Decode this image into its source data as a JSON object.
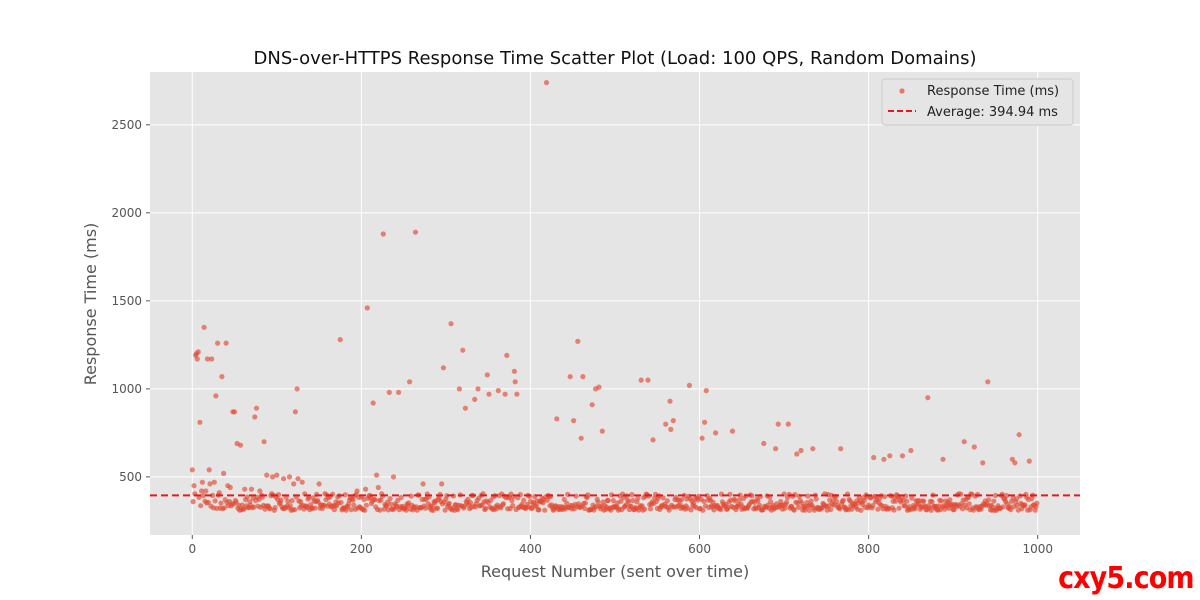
{
  "chart_data": {
    "type": "scatter",
    "title": "DNS-over-HTTPS Response Time Scatter Plot (Load: 100 QPS, Random Domains)",
    "xlabel": "Request Number (sent over time)",
    "ylabel": "Response Time (ms)",
    "xlim": [
      -50,
      1050
    ],
    "ylim": [
      170,
      2800
    ],
    "xticks": [
      0,
      200,
      400,
      600,
      800,
      1000
    ],
    "yticks": [
      500,
      1000,
      1500,
      2000,
      2500
    ],
    "grid": true,
    "background": "#e5e5e5",
    "legend_position": "top-right",
    "series": [
      {
        "name": "Response Time (ms)",
        "color": "#e24a33",
        "n": 1000,
        "baseline_band": [
          300,
          400
        ],
        "outliers": [
          [
            0,
            540
          ],
          [
            2,
            450
          ],
          [
            4,
            1190
          ],
          [
            5,
            1200
          ],
          [
            6,
            1170
          ],
          [
            7,
            1210
          ],
          [
            9,
            810
          ],
          [
            11,
            420
          ],
          [
            12,
            470
          ],
          [
            14,
            1350
          ],
          [
            16,
            420
          ],
          [
            18,
            1170
          ],
          [
            20,
            540
          ],
          [
            21,
            460
          ],
          [
            23,
            1170
          ],
          [
            26,
            470
          ],
          [
            28,
            960
          ],
          [
            30,
            1260
          ],
          [
            32,
            410
          ],
          [
            35,
            1070
          ],
          [
            37,
            520
          ],
          [
            40,
            1260
          ],
          [
            42,
            450
          ],
          [
            45,
            440
          ],
          [
            48,
            870
          ],
          [
            50,
            870
          ],
          [
            53,
            690
          ],
          [
            57,
            680
          ],
          [
            62,
            430
          ],
          [
            70,
            430
          ],
          [
            74,
            840
          ],
          [
            76,
            890
          ],
          [
            80,
            420
          ],
          [
            85,
            700
          ],
          [
            88,
            510
          ],
          [
            95,
            500
          ],
          [
            100,
            510
          ],
          [
            108,
            490
          ],
          [
            115,
            500
          ],
          [
            120,
            460
          ],
          [
            122,
            870
          ],
          [
            124,
            1000
          ],
          [
            125,
            490
          ],
          [
            130,
            470
          ],
          [
            150,
            460
          ],
          [
            175,
            1280
          ],
          [
            195,
            420
          ],
          [
            205,
            430
          ],
          [
            207,
            1460
          ],
          [
            214,
            920
          ],
          [
            218,
            510
          ],
          [
            220,
            440
          ],
          [
            226,
            1880
          ],
          [
            233,
            980
          ],
          [
            238,
            500
          ],
          [
            244,
            980
          ],
          [
            257,
            1040
          ],
          [
            264,
            1890
          ],
          [
            273,
            460
          ],
          [
            295,
            460
          ],
          [
            297,
            1120
          ],
          [
            306,
            1370
          ],
          [
            316,
            1000
          ],
          [
            320,
            1220
          ],
          [
            323,
            890
          ],
          [
            334,
            940
          ],
          [
            338,
            1000
          ],
          [
            349,
            1080
          ],
          [
            351,
            970
          ],
          [
            362,
            990
          ],
          [
            370,
            970
          ],
          [
            372,
            1190
          ],
          [
            381,
            1100
          ],
          [
            382,
            1040
          ],
          [
            384,
            970
          ],
          [
            419,
            2740
          ],
          [
            431,
            830
          ],
          [
            447,
            1070
          ],
          [
            451,
            820
          ],
          [
            456,
            1270
          ],
          [
            460,
            720
          ],
          [
            462,
            1070
          ],
          [
            473,
            910
          ],
          [
            477,
            1000
          ],
          [
            481,
            1010
          ],
          [
            485,
            760
          ],
          [
            531,
            1050
          ],
          [
            539,
            1050
          ],
          [
            545,
            710
          ],
          [
            560,
            800
          ],
          [
            565,
            930
          ],
          [
            566,
            770
          ],
          [
            569,
            820
          ],
          [
            588,
            1020
          ],
          [
            603,
            720
          ],
          [
            606,
            810
          ],
          [
            608,
            990
          ],
          [
            619,
            750
          ],
          [
            639,
            760
          ],
          [
            676,
            690
          ],
          [
            690,
            660
          ],
          [
            693,
            800
          ],
          [
            705,
            800
          ],
          [
            715,
            630
          ],
          [
            720,
            650
          ],
          [
            734,
            660
          ],
          [
            767,
            660
          ],
          [
            806,
            610
          ],
          [
            818,
            600
          ],
          [
            825,
            620
          ],
          [
            840,
            620
          ],
          [
            850,
            650
          ],
          [
            870,
            950
          ],
          [
            888,
            600
          ],
          [
            913,
            700
          ],
          [
            925,
            670
          ],
          [
            935,
            580
          ],
          [
            941,
            1040
          ],
          [
            970,
            600
          ],
          [
            973,
            580
          ],
          [
            978,
            740
          ],
          [
            990,
            590
          ]
        ]
      }
    ],
    "reference_lines": [
      {
        "name": "Average: 394.94 ms",
        "y": 394.94,
        "color": "#e41a1c",
        "style": "dashed"
      }
    ]
  },
  "watermark": "cxy5.com"
}
